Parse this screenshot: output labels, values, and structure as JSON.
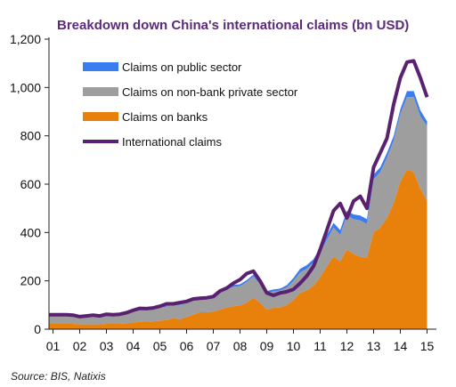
{
  "chart_data": {
    "type": "area",
    "title": "Breakdown down China's international claims (bn USD)",
    "xlabel": "",
    "ylabel": "",
    "ylim": [
      0,
      1200
    ],
    "yticks": [
      "0",
      "200",
      "400",
      "600",
      "800",
      "1,000",
      "1,200"
    ],
    "ytick_values": [
      0,
      200,
      400,
      600,
      800,
      1000,
      1200
    ],
    "xticks": [
      "01",
      "02",
      "03",
      "04",
      "05",
      "06",
      "07",
      "08",
      "09",
      "10",
      "11",
      "12",
      "13",
      "14",
      "15"
    ],
    "xtick_values": [
      2001,
      2002,
      2003,
      2004,
      2005,
      2006,
      2007,
      2008,
      2009,
      2010,
      2011,
      2012,
      2013,
      2014,
      2015
    ],
    "grid": false,
    "legend_position": "top-left",
    "colors": {
      "banks": "#e8800c",
      "nonbank": "#9e9e9e",
      "public": "#3a7df0",
      "total": "#5a2170"
    },
    "x": [
      2000.85,
      2001.25,
      2001.5,
      2001.75,
      2002.0,
      2002.25,
      2002.5,
      2002.75,
      2003.0,
      2003.25,
      2003.5,
      2003.75,
      2004.0,
      2004.25,
      2004.5,
      2004.75,
      2005.0,
      2005.25,
      2005.5,
      2005.75,
      2006.0,
      2006.25,
      2006.5,
      2006.75,
      2007.0,
      2007.25,
      2007.5,
      2007.75,
      2008.0,
      2008.25,
      2008.5,
      2008.75,
      2009.0,
      2009.25,
      2009.5,
      2009.75,
      2010.0,
      2010.25,
      2010.5,
      2010.75,
      2011.0,
      2011.25,
      2011.5,
      2011.75,
      2012.0,
      2012.25,
      2012.5,
      2012.75,
      2013.0,
      2013.25,
      2013.5,
      2013.75,
      2014.0,
      2014.25,
      2014.5,
      2014.75,
      2015.0
    ],
    "series": [
      {
        "name": "Claims on banks",
        "values": [
          22,
          22,
          22,
          22,
          20,
          20,
          20,
          20,
          22,
          22,
          22,
          24,
          28,
          30,
          32,
          32,
          35,
          38,
          45,
          40,
          50,
          60,
          70,
          70,
          72,
          80,
          90,
          95,
          98,
          110,
          130,
          110,
          80,
          88,
          90,
          100,
          120,
          150,
          160,
          180,
          215,
          260,
          300,
          280,
          330,
          310,
          300,
          295,
          400,
          420,
          460,
          520,
          610,
          660,
          650,
          580,
          530
        ]
      },
      {
        "name": "Claims on non-bank private sector",
        "values": [
          35,
          35,
          35,
          35,
          32,
          32,
          34,
          34,
          36,
          36,
          38,
          40,
          45,
          48,
          50,
          52,
          55,
          55,
          58,
          58,
          60,
          60,
          58,
          58,
          58,
          70,
          75,
          80,
          80,
          85,
          88,
          75,
          70,
          68,
          70,
          72,
          80,
          85,
          90,
          95,
          100,
          110,
          120,
          110,
          140,
          145,
          150,
          140,
          220,
          230,
          250,
          260,
          280,
          300,
          310,
          300,
          310
        ]
      },
      {
        "name": "Claims on public sector",
        "values": [
          2,
          2,
          2,
          2,
          2,
          2,
          2,
          2,
          2,
          2,
          2,
          2,
          3,
          3,
          3,
          3,
          3,
          3,
          3,
          3,
          3,
          3,
          3,
          3,
          5,
          5,
          5,
          8,
          8,
          8,
          8,
          8,
          8,
          8,
          8,
          10,
          12,
          15,
          15,
          15,
          20,
          20,
          20,
          20,
          20,
          20,
          20,
          20,
          20,
          20,
          20,
          20,
          20,
          25,
          25,
          25,
          20
        ]
      },
      {
        "name": "International claims",
        "values": [
          60,
          60,
          60,
          58,
          52,
          55,
          58,
          55,
          62,
          60,
          62,
          68,
          78,
          86,
          85,
          88,
          95,
          105,
          105,
          110,
          115,
          125,
          128,
          130,
          135,
          158,
          170,
          190,
          205,
          230,
          240,
          200,
          150,
          140,
          150,
          155,
          165,
          190,
          220,
          260,
          330,
          410,
          490,
          520,
          460,
          530,
          550,
          500,
          670,
          730,
          790,
          930,
          1040,
          1105,
          1110,
          1040,
          960
        ]
      }
    ]
  },
  "source": "Source: BIS, Natixis"
}
